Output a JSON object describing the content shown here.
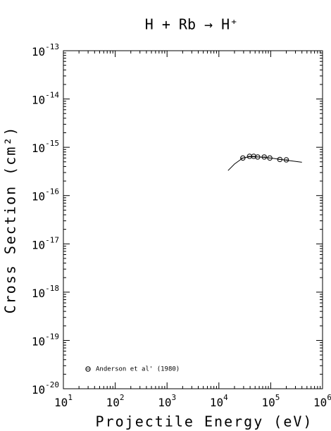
{
  "chart_data": {
    "type": "scatter",
    "title": "H + Rb → H⁺",
    "xlabel": "Projectile Energy (eV)",
    "ylabel": "Cross Section (cm²)",
    "xscale": "log",
    "yscale": "log",
    "xlim": [
      10,
      1000000
    ],
    "ylim": [
      1e-20,
      1e-13
    ],
    "xticks": [
      {
        "value": 10,
        "label": "10",
        "exponent": "1"
      },
      {
        "value": 100,
        "label": "10",
        "exponent": "2"
      },
      {
        "value": 1000,
        "label": "10",
        "exponent": "3"
      },
      {
        "value": 10000,
        "label": "10",
        "exponent": "4"
      },
      {
        "value": 100000,
        "label": "10",
        "exponent": "5"
      },
      {
        "value": 1000000,
        "label": "10",
        "exponent": "6"
      }
    ],
    "yticks": [
      {
        "value": 1e-20,
        "label": "10",
        "exponent": "-20"
      },
      {
        "value": 1e-19,
        "label": "10",
        "exponent": "-19"
      },
      {
        "value": 1e-18,
        "label": "10",
        "exponent": "-18"
      },
      {
        "value": 1e-17,
        "label": "10",
        "exponent": "-17"
      },
      {
        "value": 1e-16,
        "label": "10",
        "exponent": "-16"
      },
      {
        "value": 1e-15,
        "label": "10",
        "exponent": "-15"
      },
      {
        "value": 1e-14,
        "label": "10",
        "exponent": "-14"
      },
      {
        "value": 1e-13,
        "label": "10",
        "exponent": "-13"
      }
    ],
    "legend": "lower left",
    "series": [
      {
        "name": "Anderson et al' (1980)",
        "color": "#000000",
        "marker": "circle",
        "x": [
          29000,
          39000,
          47000,
          56000,
          75000,
          96000,
          150000,
          200000
        ],
        "values": [
          6e-16,
          6.5e-16,
          6.5e-16,
          6.3e-16,
          6.3e-16,
          6e-16,
          5.6e-16,
          5.5e-16
        ]
      }
    ],
    "fit": {
      "color": "#000000",
      "x": [
        15000,
        20000,
        29000,
        40000,
        60000,
        100000,
        200000,
        400000
      ],
      "values": [
        3.3e-16,
        4.5e-16,
        6e-16,
        6.4e-16,
        6.3e-16,
        6e-16,
        5.4e-16,
        4.9e-16
      ]
    }
  }
}
